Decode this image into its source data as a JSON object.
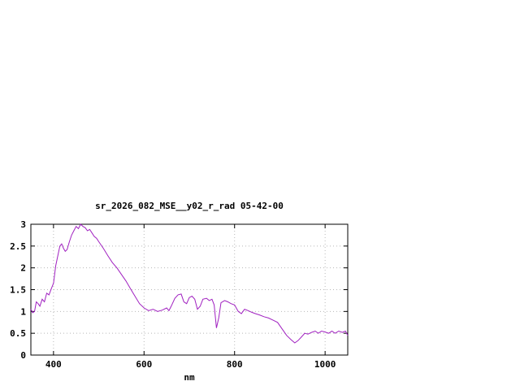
{
  "page": {
    "background": "#ffffff"
  },
  "chart_data": {
    "type": "line",
    "title": "sr_2026_082_MSE__y02_r_rad 05-42-00",
    "xlabel": "nm",
    "ylabel": "",
    "xlim": [
      350,
      1050
    ],
    "ylim": [
      0,
      3
    ],
    "xticks": [
      400,
      600,
      800,
      1000
    ],
    "xtick_labels": [
      "400",
      "600",
      "800",
      "1000"
    ],
    "yticks": [
      0,
      0.5,
      1,
      1.5,
      2,
      2.5,
      3
    ],
    "ytick_labels": [
      "0",
      "0.5",
      "1",
      "1.5",
      "2",
      "2.5",
      "3"
    ],
    "grid": true,
    "legend_position": "none",
    "line_color": "#a020c0",
    "grid_color": "#b8b8b8",
    "axis_color": "#000000",
    "series": [
      {
        "name": "sr_2026_082_MSE__y02_r_rad",
        "points": [
          [
            350,
            1.05
          ],
          [
            354,
            0.97
          ],
          [
            358,
            1.0
          ],
          [
            362,
            1.22
          ],
          [
            366,
            1.18
          ],
          [
            370,
            1.12
          ],
          [
            375,
            1.28
          ],
          [
            380,
            1.22
          ],
          [
            385,
            1.42
          ],
          [
            390,
            1.38
          ],
          [
            395,
            1.52
          ],
          [
            400,
            1.65
          ],
          [
            405,
            2.05
          ],
          [
            410,
            2.3
          ],
          [
            414,
            2.5
          ],
          [
            418,
            2.55
          ],
          [
            422,
            2.45
          ],
          [
            426,
            2.38
          ],
          [
            430,
            2.42
          ],
          [
            435,
            2.6
          ],
          [
            440,
            2.75
          ],
          [
            445,
            2.85
          ],
          [
            450,
            2.95
          ],
          [
            455,
            2.9
          ],
          [
            460,
            3.0
          ],
          [
            465,
            2.95
          ],
          [
            470,
            2.92
          ],
          [
            475,
            2.85
          ],
          [
            480,
            2.88
          ],
          [
            485,
            2.8
          ],
          [
            490,
            2.72
          ],
          [
            495,
            2.68
          ],
          [
            500,
            2.6
          ],
          [
            510,
            2.45
          ],
          [
            520,
            2.28
          ],
          [
            530,
            2.12
          ],
          [
            540,
            2.0
          ],
          [
            550,
            1.85
          ],
          [
            560,
            1.7
          ],
          [
            570,
            1.52
          ],
          [
            580,
            1.35
          ],
          [
            590,
            1.18
          ],
          [
            600,
            1.08
          ],
          [
            610,
            1.02
          ],
          [
            620,
            1.05
          ],
          [
            630,
            1.0
          ],
          [
            640,
            1.03
          ],
          [
            650,
            1.08
          ],
          [
            655,
            1.02
          ],
          [
            660,
            1.12
          ],
          [
            668,
            1.3
          ],
          [
            675,
            1.38
          ],
          [
            682,
            1.4
          ],
          [
            688,
            1.22
          ],
          [
            694,
            1.18
          ],
          [
            700,
            1.32
          ],
          [
            706,
            1.35
          ],
          [
            712,
            1.28
          ],
          [
            718,
            1.05
          ],
          [
            724,
            1.12
          ],
          [
            730,
            1.28
          ],
          [
            738,
            1.3
          ],
          [
            744,
            1.25
          ],
          [
            750,
            1.28
          ],
          [
            755,
            1.15
          ],
          [
            760,
            0.62
          ],
          [
            765,
            0.85
          ],
          [
            770,
            1.2
          ],
          [
            778,
            1.25
          ],
          [
            785,
            1.22
          ],
          [
            792,
            1.18
          ],
          [
            800,
            1.15
          ],
          [
            808,
            1.0
          ],
          [
            815,
            0.95
          ],
          [
            822,
            1.05
          ],
          [
            830,
            1.02
          ],
          [
            838,
            0.98
          ],
          [
            846,
            0.95
          ],
          [
            855,
            0.92
          ],
          [
            865,
            0.88
          ],
          [
            875,
            0.85
          ],
          [
            885,
            0.8
          ],
          [
            895,
            0.75
          ],
          [
            905,
            0.6
          ],
          [
            915,
            0.45
          ],
          [
            925,
            0.35
          ],
          [
            933,
            0.28
          ],
          [
            940,
            0.33
          ],
          [
            948,
            0.42
          ],
          [
            955,
            0.5
          ],
          [
            962,
            0.48
          ],
          [
            970,
            0.52
          ],
          [
            978,
            0.55
          ],
          [
            985,
            0.5
          ],
          [
            992,
            0.55
          ],
          [
            1000,
            0.53
          ],
          [
            1008,
            0.5
          ],
          [
            1015,
            0.55
          ],
          [
            1022,
            0.5
          ],
          [
            1030,
            0.55
          ],
          [
            1038,
            0.52
          ],
          [
            1045,
            0.55
          ],
          [
            1050,
            0.45
          ]
        ]
      }
    ]
  }
}
